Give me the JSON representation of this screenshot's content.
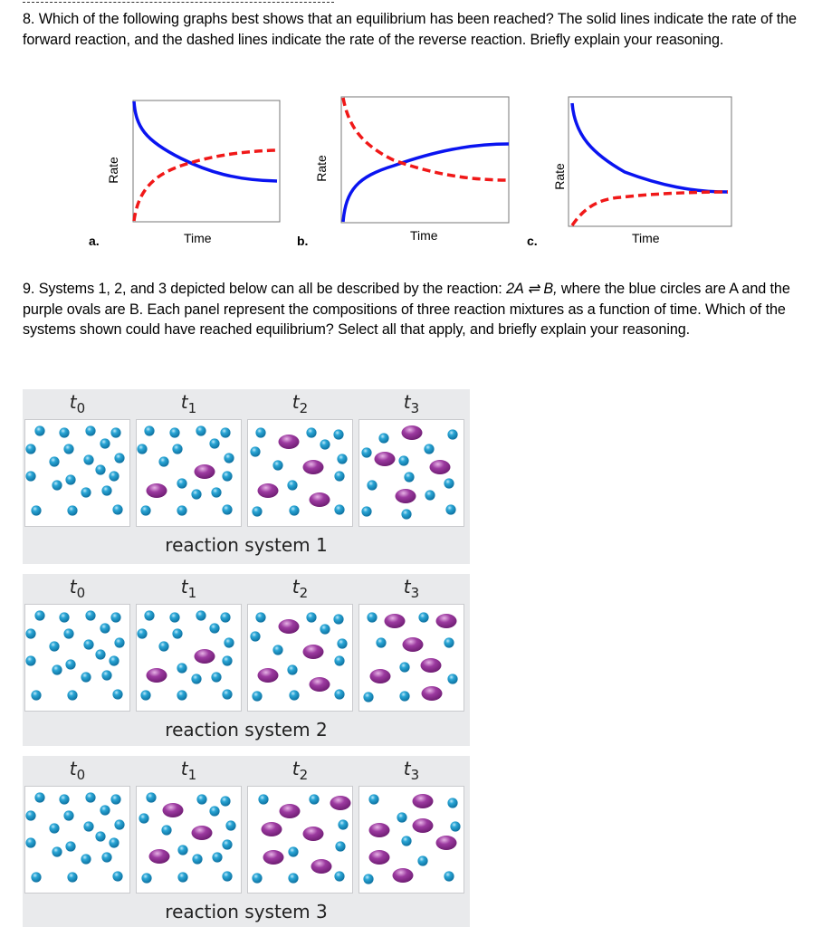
{
  "question8": {
    "text": "8. Which of the following graphs best shows that an equilibrium has been reached? The solid lines indicate the rate of the forward reaction, and the dashed lines indicate the rate of the reverse reaction. Briefly explain your reasoning."
  },
  "question9": {
    "text_before": "9. Systems 1, 2, and 3 depicted below can all be described by the reaction: ",
    "equation": "2A ⇌ B,",
    "text_after": " where the blue circles are A and the purple ovals are B. Each panel represent the compositions of three reaction mixtures as a function of time. Which of the systems shown could have reached equilibrium? Select all that apply, and briefly explain your reasoning."
  },
  "colors": {
    "forward_solid": "#0a14f0",
    "reverse_dashed": "#f01818",
    "molecule_A": "#1e96c8",
    "molecule_B": "#8c2a90",
    "panel_bg": "#e9eaec"
  },
  "chart_data": [
    {
      "type": "line",
      "label": "a.",
      "xlabel": "Time",
      "ylabel": "Rate",
      "series": [
        {
          "name": "forward (solid)",
          "style": "solid",
          "color": "#0a14f0",
          "shape": "decreasing, levels off below reverse",
          "start": 1.0,
          "end": 0.35
        },
        {
          "name": "reverse (dashed)",
          "style": "dashed",
          "color": "#f01818",
          "shape": "increasing, levels off above forward",
          "start": 0.0,
          "end": 0.6
        }
      ],
      "note": "curves cross, then remain separated"
    },
    {
      "type": "line",
      "label": "b.",
      "xlabel": "Time",
      "ylabel": "Rate",
      "series": [
        {
          "name": "forward (solid)",
          "style": "solid",
          "color": "#0a14f0",
          "shape": "increasing, levels off",
          "start": 0.0,
          "end": 0.63
        },
        {
          "name": "reverse (dashed)",
          "style": "dashed",
          "color": "#f01818",
          "shape": "decreasing, levels off",
          "start": 1.0,
          "end": 0.34
        }
      ],
      "note": "curves cross, then remain separated"
    },
    {
      "type": "line",
      "label": "c.",
      "xlabel": "Time",
      "ylabel": "Rate",
      "series": [
        {
          "name": "forward (solid)",
          "style": "solid",
          "color": "#0a14f0",
          "shape": "decreasing, converges",
          "start": 1.0,
          "end": 0.27
        },
        {
          "name": "reverse (dashed)",
          "style": "dashed",
          "color": "#f01818",
          "shape": "increasing, converges",
          "start": 0.0,
          "end": 0.27
        }
      ],
      "note": "curves converge to the same rate"
    }
  ],
  "time_labels": [
    "t",
    "t",
    "t",
    "t"
  ],
  "time_subs": [
    "0",
    "1",
    "2",
    "3"
  ],
  "systems": [
    {
      "label": "reaction system 1",
      "panels": [
        {
          "time": "t0",
          "A_count": 20,
          "B_count": 0
        },
        {
          "time": "t1",
          "A_count": 16,
          "B_count": 2
        },
        {
          "time": "t2",
          "A_count": 12,
          "B_count": 4
        },
        {
          "time": "t3",
          "A_count": 12,
          "B_count": 4
        }
      ]
    },
    {
      "label": "reaction system 2",
      "panels": [
        {
          "time": "t0",
          "A_count": 20,
          "B_count": 0
        },
        {
          "time": "t1",
          "A_count": 16,
          "B_count": 2
        },
        {
          "time": "t2",
          "A_count": 12,
          "B_count": 4
        },
        {
          "time": "t3",
          "A_count": 8,
          "B_count": 6
        }
      ]
    },
    {
      "label": "reaction system 3",
      "panels": [
        {
          "time": "t0",
          "A_count": 20,
          "B_count": 0
        },
        {
          "time": "t1",
          "A_count": 14,
          "B_count": 3
        },
        {
          "time": "t2",
          "A_count": 8,
          "B_count": 6
        },
        {
          "time": "t3",
          "A_count": 8,
          "B_count": 6
        }
      ]
    }
  ]
}
